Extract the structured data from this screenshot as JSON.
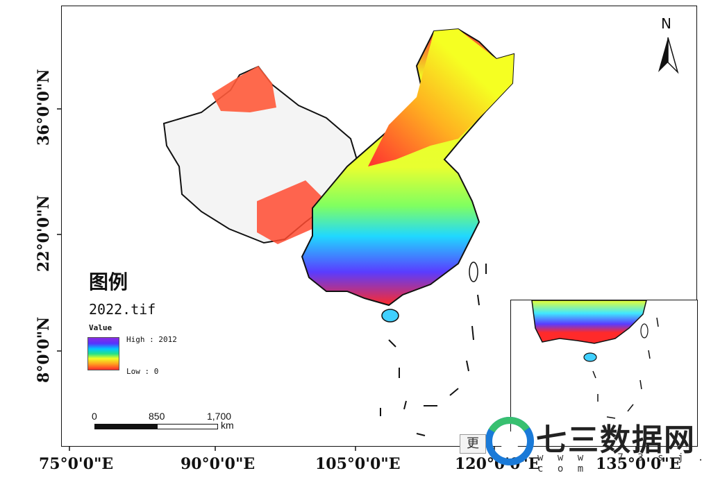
{
  "axes": {
    "latitude_labels": [
      "36°0'0\"N",
      "22°0'0\"N",
      "8°0'0\"N"
    ],
    "longitude_labels": [
      "75°0'0\"E",
      "90°0'0\"E",
      "105°0'0\"E",
      "120°0'0\"E",
      "135°0'0\"E"
    ]
  },
  "legend": {
    "title": "图例",
    "file": "2022.tif",
    "value_label": "Value",
    "high_label": "High : 2012",
    "low_label": "Low : 0",
    "ramp_colors": [
      "#8a2be2",
      "#5533ff",
      "#00c8ff",
      "#22e08a",
      "#f0ff22",
      "#ffa020",
      "#ff2a2a"
    ]
  },
  "scalebar": {
    "labels": [
      "0",
      "850",
      "1,700"
    ],
    "unit": "km"
  },
  "north_arrow": {
    "label": "N",
    "icon": "north-arrow-icon"
  },
  "watermark": {
    "brand": "七三数据网",
    "url": "w w w . 7 3 s j . c o m",
    "more_button": "更"
  },
  "colors": {
    "red": "#ff2a2a",
    "orange": "#ffa020",
    "yellow": "#f0ff22",
    "green": "#22e08a",
    "cyan": "#00c8ff",
    "blue": "#5533ff",
    "purple": "#8a2be2"
  }
}
